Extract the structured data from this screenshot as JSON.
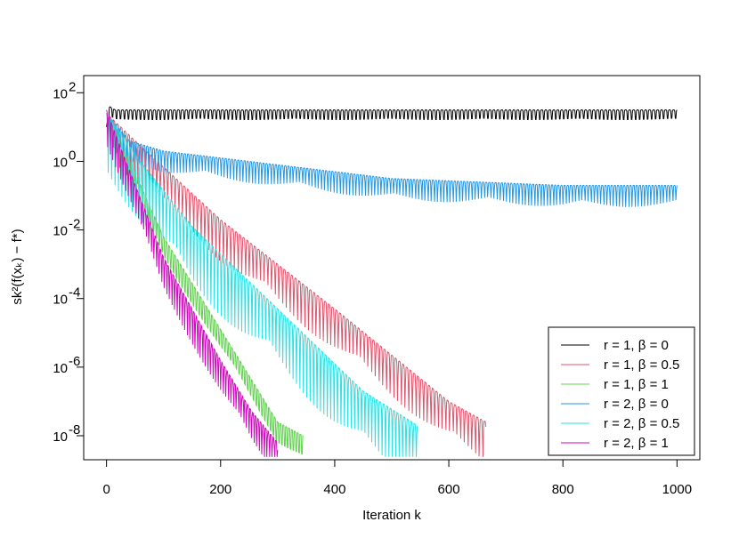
{
  "chart_data": {
    "type": "line",
    "title": "",
    "xlabel": "Iteration  k",
    "ylabel": "sk²(f(xₖ) − f*)",
    "xlim": [
      -40,
      1040
    ],
    "ylim_log10": [
      -8.7,
      2.5
    ],
    "y_scale": "log10",
    "x_ticks": [
      0,
      200,
      400,
      600,
      800,
      1000
    ],
    "x_tick_labels": [
      "0",
      "200",
      "400",
      "600",
      "800",
      "1000"
    ],
    "y_ticks_exponent": [
      2,
      0,
      -2,
      -4,
      -6,
      -8
    ],
    "y_tick_labels": [
      {
        "base": "10",
        "exp": "2"
      },
      {
        "base": "10",
        "exp": "0"
      },
      {
        "base": "10",
        "exp": "-2"
      },
      {
        "base": "10",
        "exp": "-4"
      },
      {
        "base": "10",
        "exp": "-6"
      },
      {
        "base": "10",
        "exp": "-8"
      }
    ],
    "grid": false,
    "legend_position": "bottom-right",
    "series": [
      {
        "name": "r = 1, β = 0",
        "color": "#000000",
        "log10_envelope": [
          [
            0,
            1.0
          ],
          [
            5,
            1.6
          ],
          [
            15,
            1.5
          ],
          [
            1000,
            1.5
          ]
        ],
        "oscillation_dips": [
          0.4,
          0.6
        ],
        "period": 14,
        "end_x": 1000
      },
      {
        "name": "r = 1, β = 0.5",
        "color": "#DF536B",
        "log10_envelope": [
          [
            0,
            1.4
          ],
          [
            50,
            0.6
          ],
          [
            200,
            -1.7
          ],
          [
            400,
            -4.3
          ],
          [
            600,
            -7.0
          ],
          [
            665,
            -7.6
          ]
        ],
        "oscillation_dips": [
          0.2,
          1.8
        ],
        "period": 13,
        "end_x": 665
      },
      {
        "name": "r = 1, β = 1",
        "color": "#61D04F",
        "log10_envelope": [
          [
            0,
            1.4
          ],
          [
            30,
            0.4
          ],
          [
            100,
            -2.2
          ],
          [
            200,
            -4.9
          ],
          [
            300,
            -7.6
          ],
          [
            345,
            -8.0
          ]
        ],
        "oscillation_dips": [
          0.2,
          1.8
        ],
        "period": 10,
        "end_x": 345
      },
      {
        "name": "r = 2, β = 0",
        "color": "#2297E6",
        "log10_envelope": [
          [
            0,
            1.4
          ],
          [
            40,
            0.6
          ],
          [
            100,
            0.3
          ],
          [
            300,
            -0.1
          ],
          [
            500,
            -0.5
          ],
          [
            800,
            -0.7
          ],
          [
            1000,
            -0.7
          ]
        ],
        "oscillation_dips": [
          0.2,
          1.0
        ],
        "period": 11,
        "end_x": 1000
      },
      {
        "name": "r = 2, β = 0.5",
        "color": "#28E2E5",
        "log10_envelope": [
          [
            0,
            1.4
          ],
          [
            50,
            0.2
          ],
          [
            150,
            -1.9
          ],
          [
            300,
            -4.3
          ],
          [
            450,
            -6.7
          ],
          [
            545,
            -7.7
          ]
        ],
        "oscillation_dips": [
          0.2,
          1.8
        ],
        "period": 12,
        "end_x": 545
      },
      {
        "name": "r = 2, β = 1",
        "color": "#CD0BBC",
        "log10_envelope": [
          [
            0,
            1.5
          ],
          [
            20,
            0.6
          ],
          [
            100,
            -2.8
          ],
          [
            200,
            -5.8
          ],
          [
            255,
            -7.3
          ],
          [
            300,
            -8.2
          ]
        ],
        "oscillation_dips": [
          0.2,
          1.8
        ],
        "period": 9,
        "end_x": 300
      }
    ]
  }
}
